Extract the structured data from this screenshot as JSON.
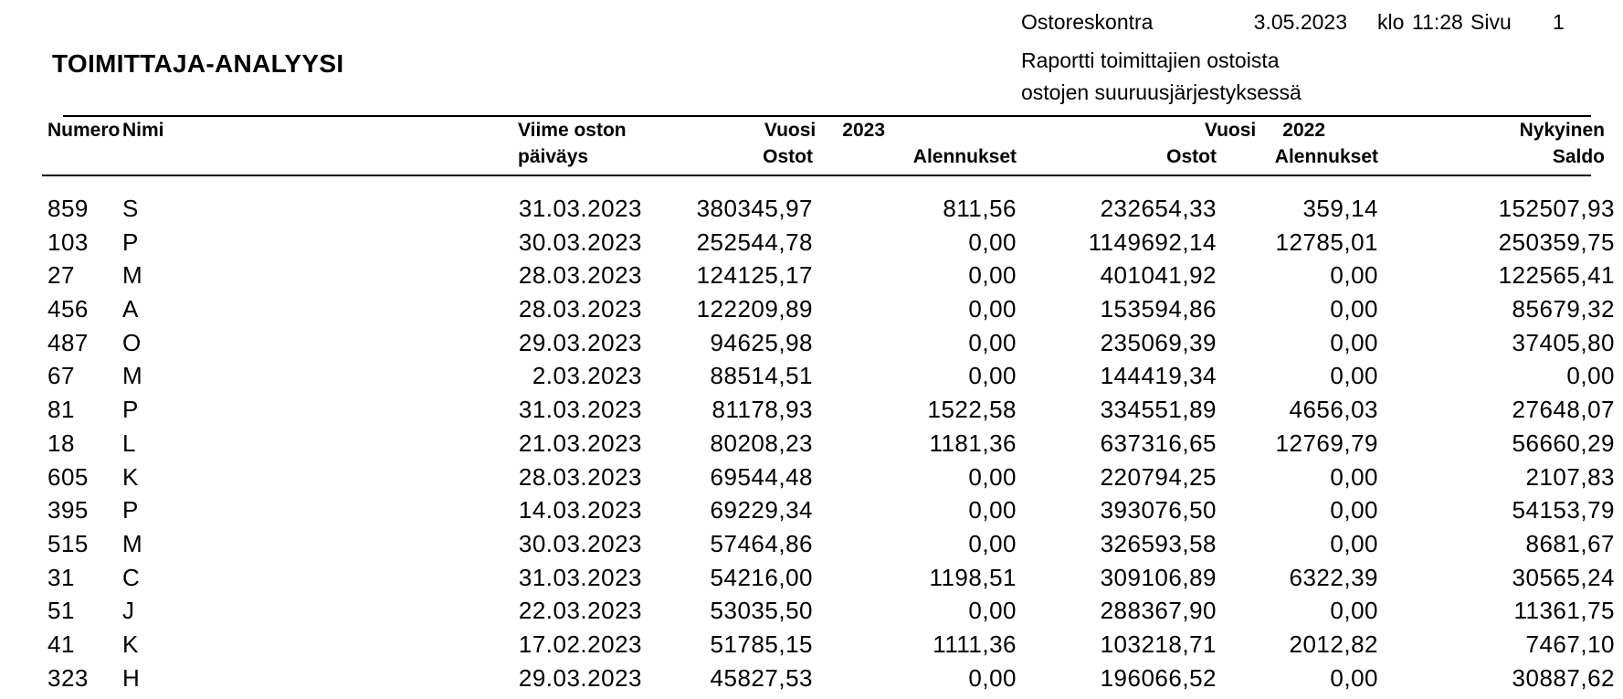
{
  "report": {
    "title": "TOIMITTAJA-ANALYYSI",
    "app_name": "Ostoreskontra",
    "date": "3.05.2023",
    "time_label": "klo",
    "time": "11:28",
    "page_label": "Sivu",
    "page_number": "1",
    "subtitle_line1": "Raportti toimittajien ostoista",
    "subtitle_line2": "ostojen suuruusjärjestyksessä"
  },
  "table": {
    "headers": {
      "numero": "Numero",
      "nimi": "Nimi",
      "viime_oston": "Viime oston",
      "paivays": "päiväys",
      "vuosi_label": "Vuosi",
      "year_2023": "2023",
      "year_2022": "2022",
      "ostot": "Ostot",
      "alennukset": "Alennukset",
      "nykyinen": "Nykyinen",
      "saldo": "Saldo"
    },
    "rows": [
      {
        "numero": "859",
        "nimi": "S",
        "paivays": "31.03.2023",
        "ostot_2023": "380345,97",
        "alennukset_2023": "811,56",
        "ostot_2022": "232654,33",
        "alennukset_2022": "359,14",
        "saldo": "152507,93"
      },
      {
        "numero": "103",
        "nimi": "P",
        "paivays": "30.03.2023",
        "ostot_2023": "252544,78",
        "alennukset_2023": "0,00",
        "ostot_2022": "1149692,14",
        "alennukset_2022": "12785,01",
        "saldo": "250359,75"
      },
      {
        "numero": "27",
        "nimi": "M",
        "paivays": "28.03.2023",
        "ostot_2023": "124125,17",
        "alennukset_2023": "0,00",
        "ostot_2022": "401041,92",
        "alennukset_2022": "0,00",
        "saldo": "122565,41"
      },
      {
        "numero": "456",
        "nimi": "A",
        "paivays": "28.03.2023",
        "ostot_2023": "122209,89",
        "alennukset_2023": "0,00",
        "ostot_2022": "153594,86",
        "alennukset_2022": "0,00",
        "saldo": "85679,32"
      },
      {
        "numero": "487",
        "nimi": "O",
        "paivays": "29.03.2023",
        "ostot_2023": "94625,98",
        "alennukset_2023": "0,00",
        "ostot_2022": "235069,39",
        "alennukset_2022": "0,00",
        "saldo": "37405,80"
      },
      {
        "numero": "67",
        "nimi": "M",
        "paivays": "2.03.2023",
        "ostot_2023": "88514,51",
        "alennukset_2023": "0,00",
        "ostot_2022": "144419,34",
        "alennukset_2022": "0,00",
        "saldo": "0,00"
      },
      {
        "numero": "81",
        "nimi": "P",
        "paivays": "31.03.2023",
        "ostot_2023": "81178,93",
        "alennukset_2023": "1522,58",
        "ostot_2022": "334551,89",
        "alennukset_2022": "4656,03",
        "saldo": "27648,07"
      },
      {
        "numero": "18",
        "nimi": "L",
        "paivays": "21.03.2023",
        "ostot_2023": "80208,23",
        "alennukset_2023": "1181,36",
        "ostot_2022": "637316,65",
        "alennukset_2022": "12769,79",
        "saldo": "56660,29"
      },
      {
        "numero": "605",
        "nimi": "K",
        "paivays": "28.03.2023",
        "ostot_2023": "69544,48",
        "alennukset_2023": "0,00",
        "ostot_2022": "220794,25",
        "alennukset_2022": "0,00",
        "saldo": "2107,83"
      },
      {
        "numero": "395",
        "nimi": "P",
        "paivays": "14.03.2023",
        "ostot_2023": "69229,34",
        "alennukset_2023": "0,00",
        "ostot_2022": "393076,50",
        "alennukset_2022": "0,00",
        "saldo": "54153,79"
      },
      {
        "numero": "515",
        "nimi": "M",
        "paivays": "30.03.2023",
        "ostot_2023": "57464,86",
        "alennukset_2023": "0,00",
        "ostot_2022": "326593,58",
        "alennukset_2022": "0,00",
        "saldo": "8681,67"
      },
      {
        "numero": "31",
        "nimi": "C",
        "paivays": "31.03.2023",
        "ostot_2023": "54216,00",
        "alennukset_2023": "1198,51",
        "ostot_2022": "309106,89",
        "alennukset_2022": "6322,39",
        "saldo": "30565,24"
      },
      {
        "numero": "51",
        "nimi": "J",
        "paivays": "22.03.2023",
        "ostot_2023": "53035,50",
        "alennukset_2023": "0,00",
        "ostot_2022": "288367,90",
        "alennukset_2022": "0,00",
        "saldo": "11361,75"
      },
      {
        "numero": "41",
        "nimi": "K",
        "paivays": "17.02.2023",
        "ostot_2023": "51785,15",
        "alennukset_2023": "1111,36",
        "ostot_2022": "103218,71",
        "alennukset_2022": "2012,82",
        "saldo": "7467,10"
      },
      {
        "numero": "323",
        "nimi": "H",
        "paivays": "29.03.2023",
        "ostot_2023": "45827,53",
        "alennukset_2023": "0,00",
        "ostot_2022": "196066,52",
        "alennukset_2022": "0,00",
        "saldo": "30887,62"
      }
    ]
  }
}
